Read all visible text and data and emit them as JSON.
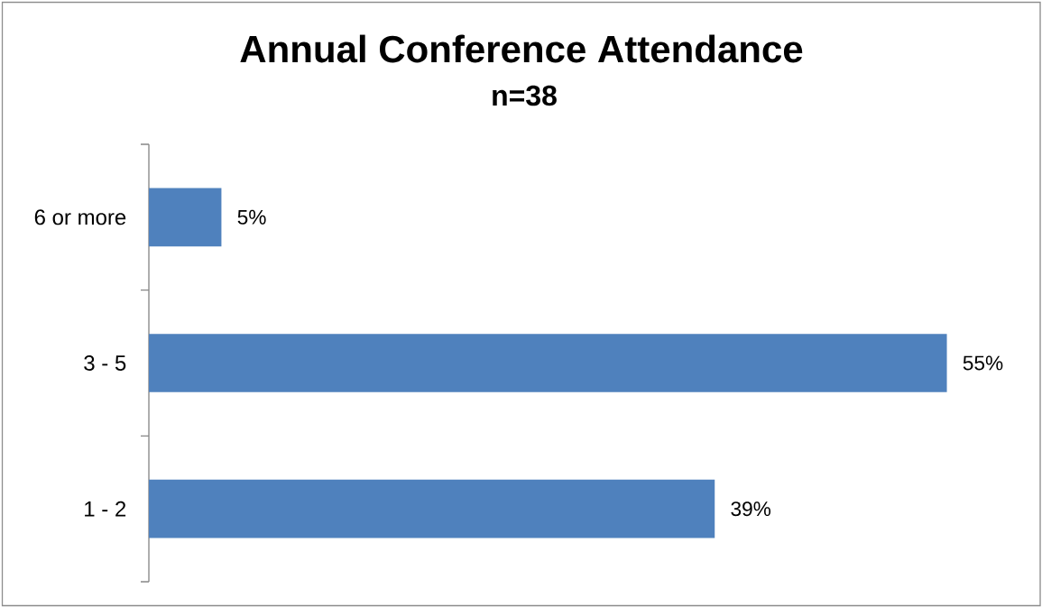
{
  "chart_data": {
    "type": "bar",
    "orientation": "horizontal",
    "title": "Annual Conference Attendance",
    "subtitle": "n=38",
    "categories": [
      "6 or more",
      "3 - 5",
      "1 - 2"
    ],
    "values": [
      5,
      55,
      39
    ],
    "value_labels": [
      "5%",
      "55%",
      "39%"
    ],
    "color": "#4f81bd",
    "tick_labels": "y"
  }
}
